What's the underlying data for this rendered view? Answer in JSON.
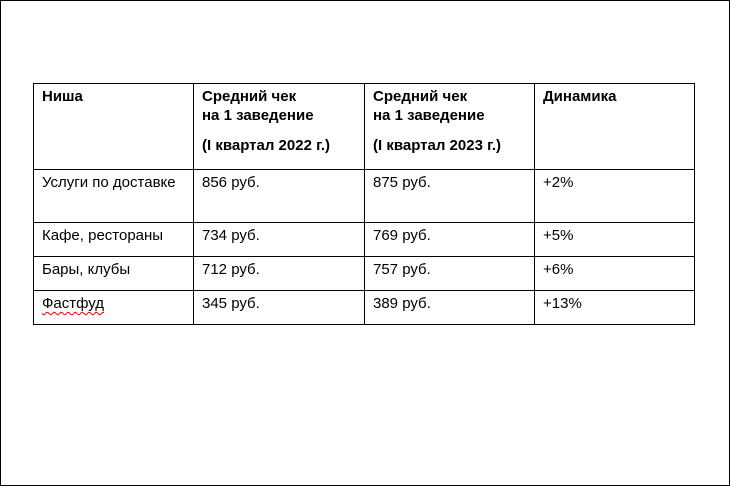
{
  "table": {
    "headers": {
      "niche": "Ниша",
      "check_2022_line1": "Средний чек",
      "check_2022_line2": "на 1 заведение",
      "check_2022_period": "(I квартал 2022 г.)",
      "check_2023_line1": "Средний чек",
      "check_2023_line2": "на 1 заведение",
      "check_2023_period": "(I квартал 2023 г.)",
      "dynamics": "Динамика"
    },
    "rows": [
      {
        "niche": "Услуги по доставке",
        "check_2022": "856 руб.",
        "check_2023": "875 руб.",
        "dynamics": "+2%"
      },
      {
        "niche": "Кафе, рестораны",
        "check_2022": "734 руб.",
        "check_2023": "769 руб.",
        "dynamics": "+5%"
      },
      {
        "niche": "Бары, клубы",
        "check_2022": "712 руб.",
        "check_2023": "757 руб.",
        "dynamics": "+6%"
      },
      {
        "niche": "Фастфуд",
        "check_2022": "345 руб.",
        "check_2023": "389 руб.",
        "dynamics": "+13%"
      }
    ]
  }
}
